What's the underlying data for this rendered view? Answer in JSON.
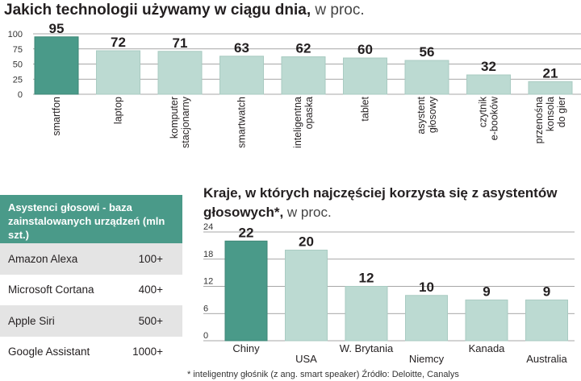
{
  "chart1": {
    "title_bold": "Jakich technologii używamy w ciągu dnia,",
    "title_normal": " w proc."
  },
  "chart2": {
    "title_bold": "Kraje, w których najczęściej korzysta się z asystentów głosowych*,",
    "title_normal": " w proc."
  },
  "table": {
    "header": "Asystenci głosowi - baza zainstalowanych urządzeń (mln szt.)",
    "rows": [
      {
        "name": "Amazon Alexa",
        "value": "100+"
      },
      {
        "name": "Microsoft Cortana",
        "value": "400+"
      },
      {
        "name": "Apple Siri",
        "value": "500+"
      },
      {
        "name": "Google Assistant",
        "value": "1000+"
      }
    ]
  },
  "footnote": "* inteligentny głośnik (z ang. smart speaker) Źródło: Deloitte, Canalys",
  "colors": {
    "highlight": "#4a9a89",
    "bar": "#bcdad2",
    "bar_stroke": "#a9cbc2",
    "grid": "#8a8a8a"
  },
  "chart_data": [
    {
      "type": "bar",
      "title": "Jakich technologii używamy w ciągu dnia, w proc.",
      "categories": [
        "smartfon",
        "laptop",
        "komputer stacjonarny",
        "smartwatch",
        "inteligentna opaska",
        "tablet",
        "asystent głosowy",
        "czytnik e-booków",
        "przenośna konsola do gier"
      ],
      "category_lines": [
        [
          "smartfon"
        ],
        [
          "laptop"
        ],
        [
          "komputer",
          "stacjonarny"
        ],
        [
          "smartwatch"
        ],
        [
          "inteligentna",
          "opaska"
        ],
        [
          "tablet"
        ],
        [
          "asystent",
          "głosowy"
        ],
        [
          "czytnik",
          "e-booków"
        ],
        [
          "przenośna",
          "konsola",
          "do gier"
        ]
      ],
      "values": [
        95,
        72,
        71,
        63,
        62,
        60,
        56,
        32,
        21
      ],
      "highlight_index": 0,
      "yticks": [
        0,
        25,
        50,
        75,
        100
      ],
      "ylim": [
        0,
        100
      ],
      "xlabel": "",
      "ylabel": ""
    },
    {
      "type": "bar",
      "title": "Kraje, w których najczęściej korzysta się z asystentów głosowych*, w proc.",
      "categories": [
        "Chiny",
        "USA",
        "W. Brytania",
        "Niemcy",
        "Kanada",
        "Australia"
      ],
      "values": [
        22,
        20,
        12,
        10,
        9,
        9
      ],
      "highlight_index": 0,
      "yticks": [
        0,
        6,
        12,
        18,
        24
      ],
      "ylim": [
        0,
        24
      ],
      "xlabel": "",
      "ylabel": ""
    }
  ]
}
